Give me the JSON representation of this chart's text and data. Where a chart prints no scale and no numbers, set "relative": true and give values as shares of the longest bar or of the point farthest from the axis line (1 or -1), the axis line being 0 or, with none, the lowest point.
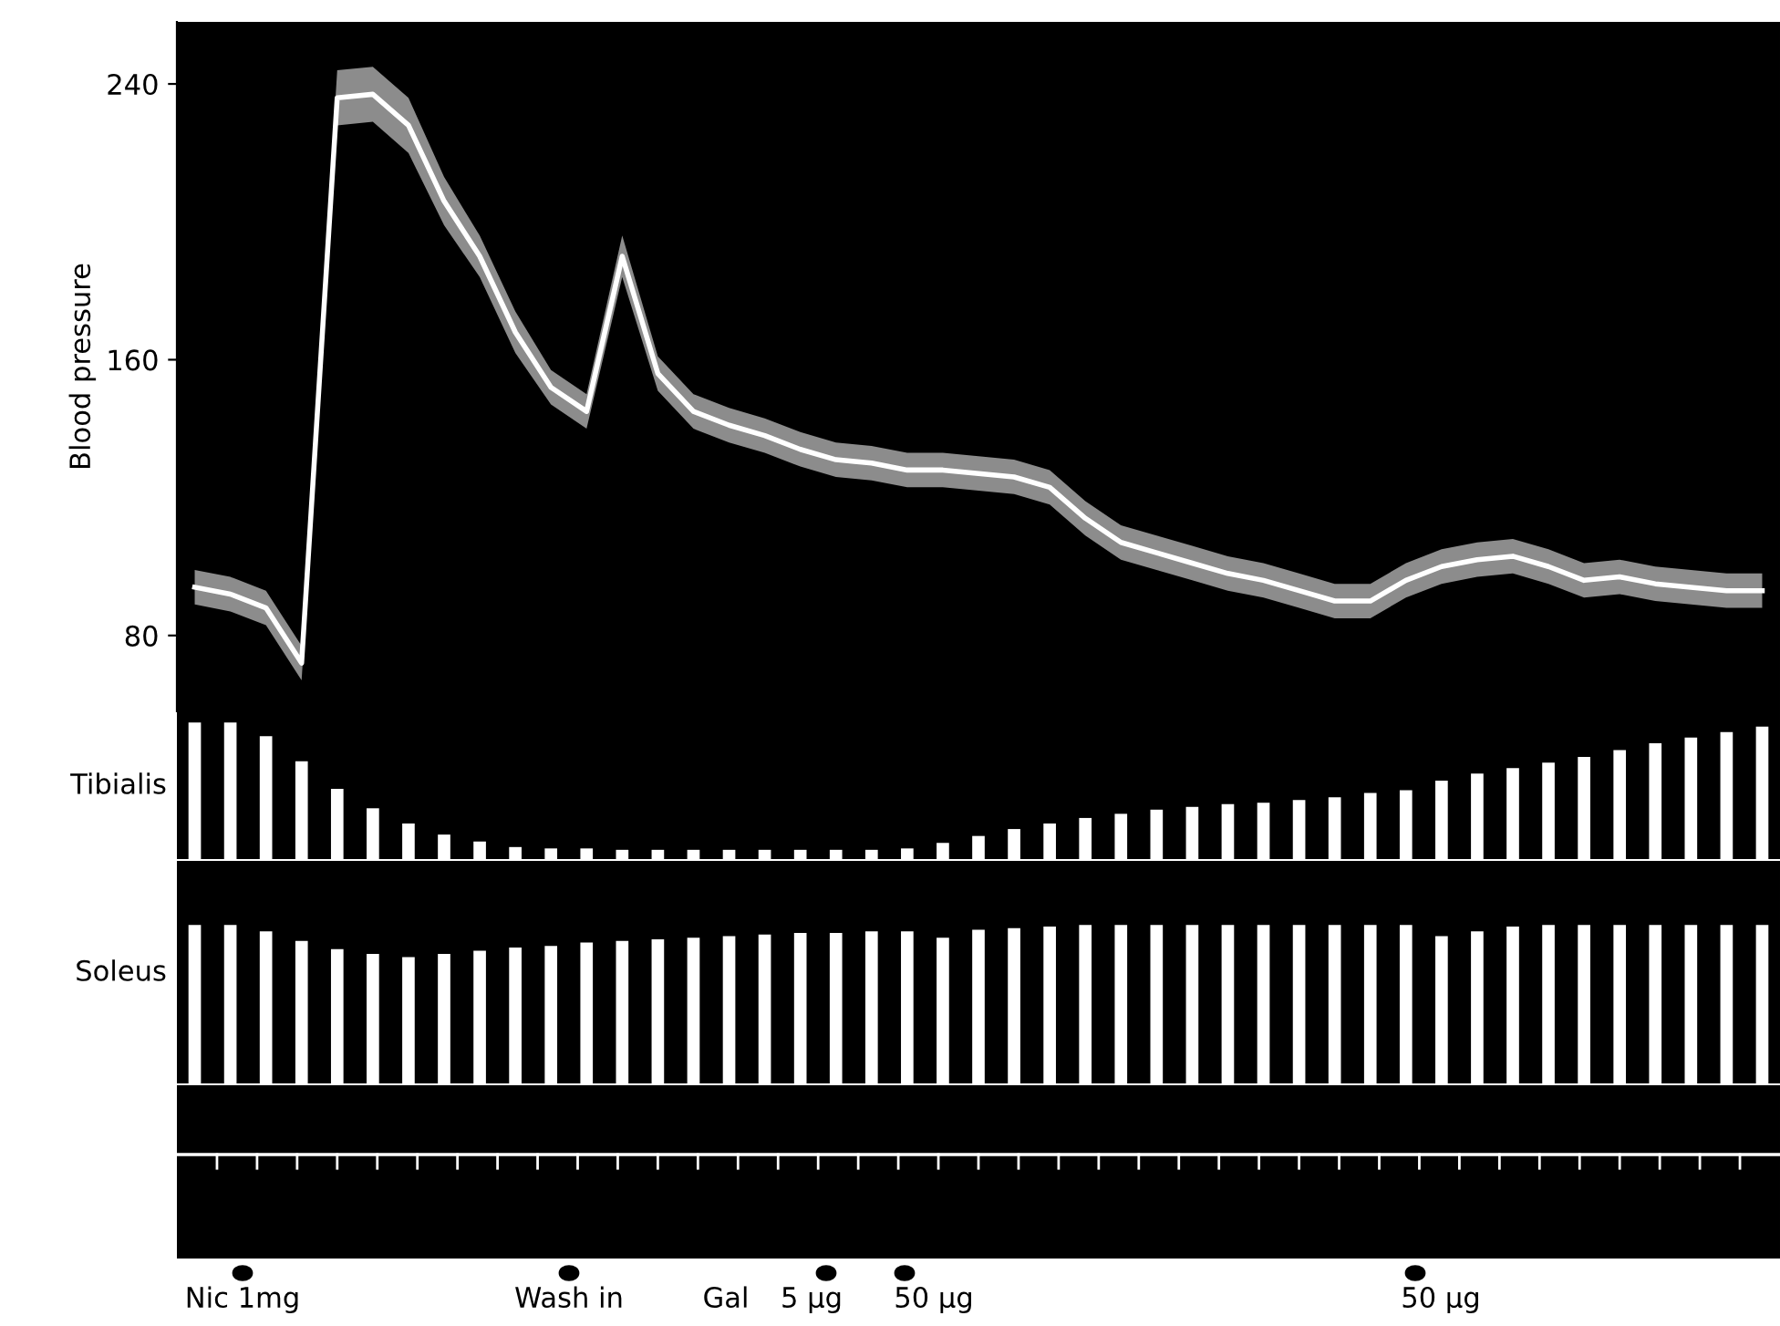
{
  "chart_data": [
    {
      "type": "line",
      "ylabel": "Blood pressure",
      "ylim": [
        58,
        258
      ],
      "yticks": [
        80,
        160,
        240
      ],
      "grid": false,
      "legend": false,
      "marker": "none",
      "categories": [
        null,
        null,
        null,
        null,
        null,
        null,
        null,
        null,
        null,
        null,
        null,
        null,
        null,
        null,
        null,
        null,
        null,
        null,
        null,
        null,
        null,
        null,
        null,
        null,
        null,
        null,
        null,
        null,
        null,
        null,
        null,
        null,
        null,
        null,
        null,
        null,
        null,
        null,
        null,
        null,
        null,
        null,
        null,
        null,
        null
      ],
      "series": [
        {
          "color": "#ffffff",
          "values": [
            94,
            92,
            88,
            72,
            236,
            237,
            228,
            206,
            190,
            168,
            152,
            145,
            190,
            156,
            145,
            141,
            138,
            134,
            131,
            130,
            128,
            128,
            127,
            126,
            123,
            114,
            107,
            104,
            101,
            98,
            96,
            93,
            90,
            90,
            96,
            100,
            102,
            103,
            100,
            96,
            97,
            95,
            94,
            93,
            93
          ],
          "lower": [
            89,
            87,
            83,
            67,
            228,
            229,
            220,
            199,
            184,
            162,
            147,
            140,
            184,
            151,
            140,
            136,
            133,
            129,
            126,
            125,
            123,
            123,
            122,
            121,
            118,
            109,
            102,
            99,
            96,
            93,
            91,
            88,
            85,
            85,
            91,
            95,
            97,
            98,
            95,
            91,
            92,
            90,
            89,
            88,
            88
          ],
          "upper": [
            99,
            97,
            93,
            77,
            244,
            245,
            236,
            213,
            196,
            174,
            157,
            150,
            196,
            161,
            150,
            146,
            143,
            139,
            136,
            135,
            133,
            133,
            132,
            131,
            128,
            119,
            112,
            109,
            106,
            103,
            101,
            98,
            95,
            95,
            101,
            105,
            107,
            108,
            105,
            101,
            102,
            100,
            99,
            98,
            98
          ]
        }
      ]
    },
    {
      "type": "bar",
      "relative": true,
      "ylabel": "Tibialis",
      "categories": [
        null,
        null,
        null,
        null,
        null,
        null,
        null,
        null,
        null,
        null,
        null,
        null,
        null,
        null,
        null,
        null,
        null,
        null,
        null,
        null,
        null,
        null,
        null,
        null,
        null,
        null,
        null,
        null,
        null,
        null,
        null,
        null,
        null,
        null,
        null,
        null,
        null,
        null,
        null,
        null,
        null,
        null,
        null,
        null,
        null
      ],
      "series": [
        {
          "color": "#ffffff",
          "values": [
            1.0,
            1.0,
            0.9,
            0.72,
            0.52,
            0.38,
            0.27,
            0.19,
            0.14,
            0.1,
            0.09,
            0.09,
            0.08,
            0.08,
            0.08,
            0.08,
            0.08,
            0.08,
            0.08,
            0.08,
            0.09,
            0.13,
            0.18,
            0.23,
            0.27,
            0.31,
            0.34,
            0.37,
            0.39,
            0.41,
            0.42,
            0.44,
            0.46,
            0.49,
            0.51,
            0.58,
            0.63,
            0.67,
            0.71,
            0.75,
            0.8,
            0.85,
            0.89,
            0.93,
            0.97
          ]
        }
      ]
    },
    {
      "type": "bar",
      "relative": true,
      "ylabel": "Soleus",
      "annotations": [
        "Nic 1mg",
        "Wash in",
        "Gal",
        "5 μg",
        "50 μg",
        "50 μg"
      ],
      "categories": [
        null,
        null,
        null,
        null,
        null,
        null,
        null,
        null,
        null,
        null,
        null,
        null,
        null,
        null,
        null,
        null,
        null,
        null,
        null,
        null,
        null,
        null,
        null,
        null,
        null,
        null,
        null,
        null,
        null,
        null,
        null,
        null,
        null,
        null,
        null,
        null,
        null,
        null,
        null,
        null,
        null,
        null,
        null,
        null,
        null
      ],
      "series": [
        {
          "color": "#ffffff",
          "values": [
            1.0,
            1.0,
            0.96,
            0.9,
            0.85,
            0.82,
            0.8,
            0.82,
            0.84,
            0.86,
            0.87,
            0.89,
            0.9,
            0.91,
            0.92,
            0.93,
            0.94,
            0.95,
            0.95,
            0.96,
            0.96,
            0.92,
            0.97,
            0.98,
            0.99,
            1.0,
            1.0,
            1.0,
            1.0,
            1.0,
            1.0,
            1.0,
            1.0,
            1.0,
            1.0,
            0.93,
            0.96,
            0.99,
            1.0,
            1.0,
            1.0,
            1.0,
            1.0,
            1.0,
            1.0
          ]
        }
      ]
    }
  ]
}
